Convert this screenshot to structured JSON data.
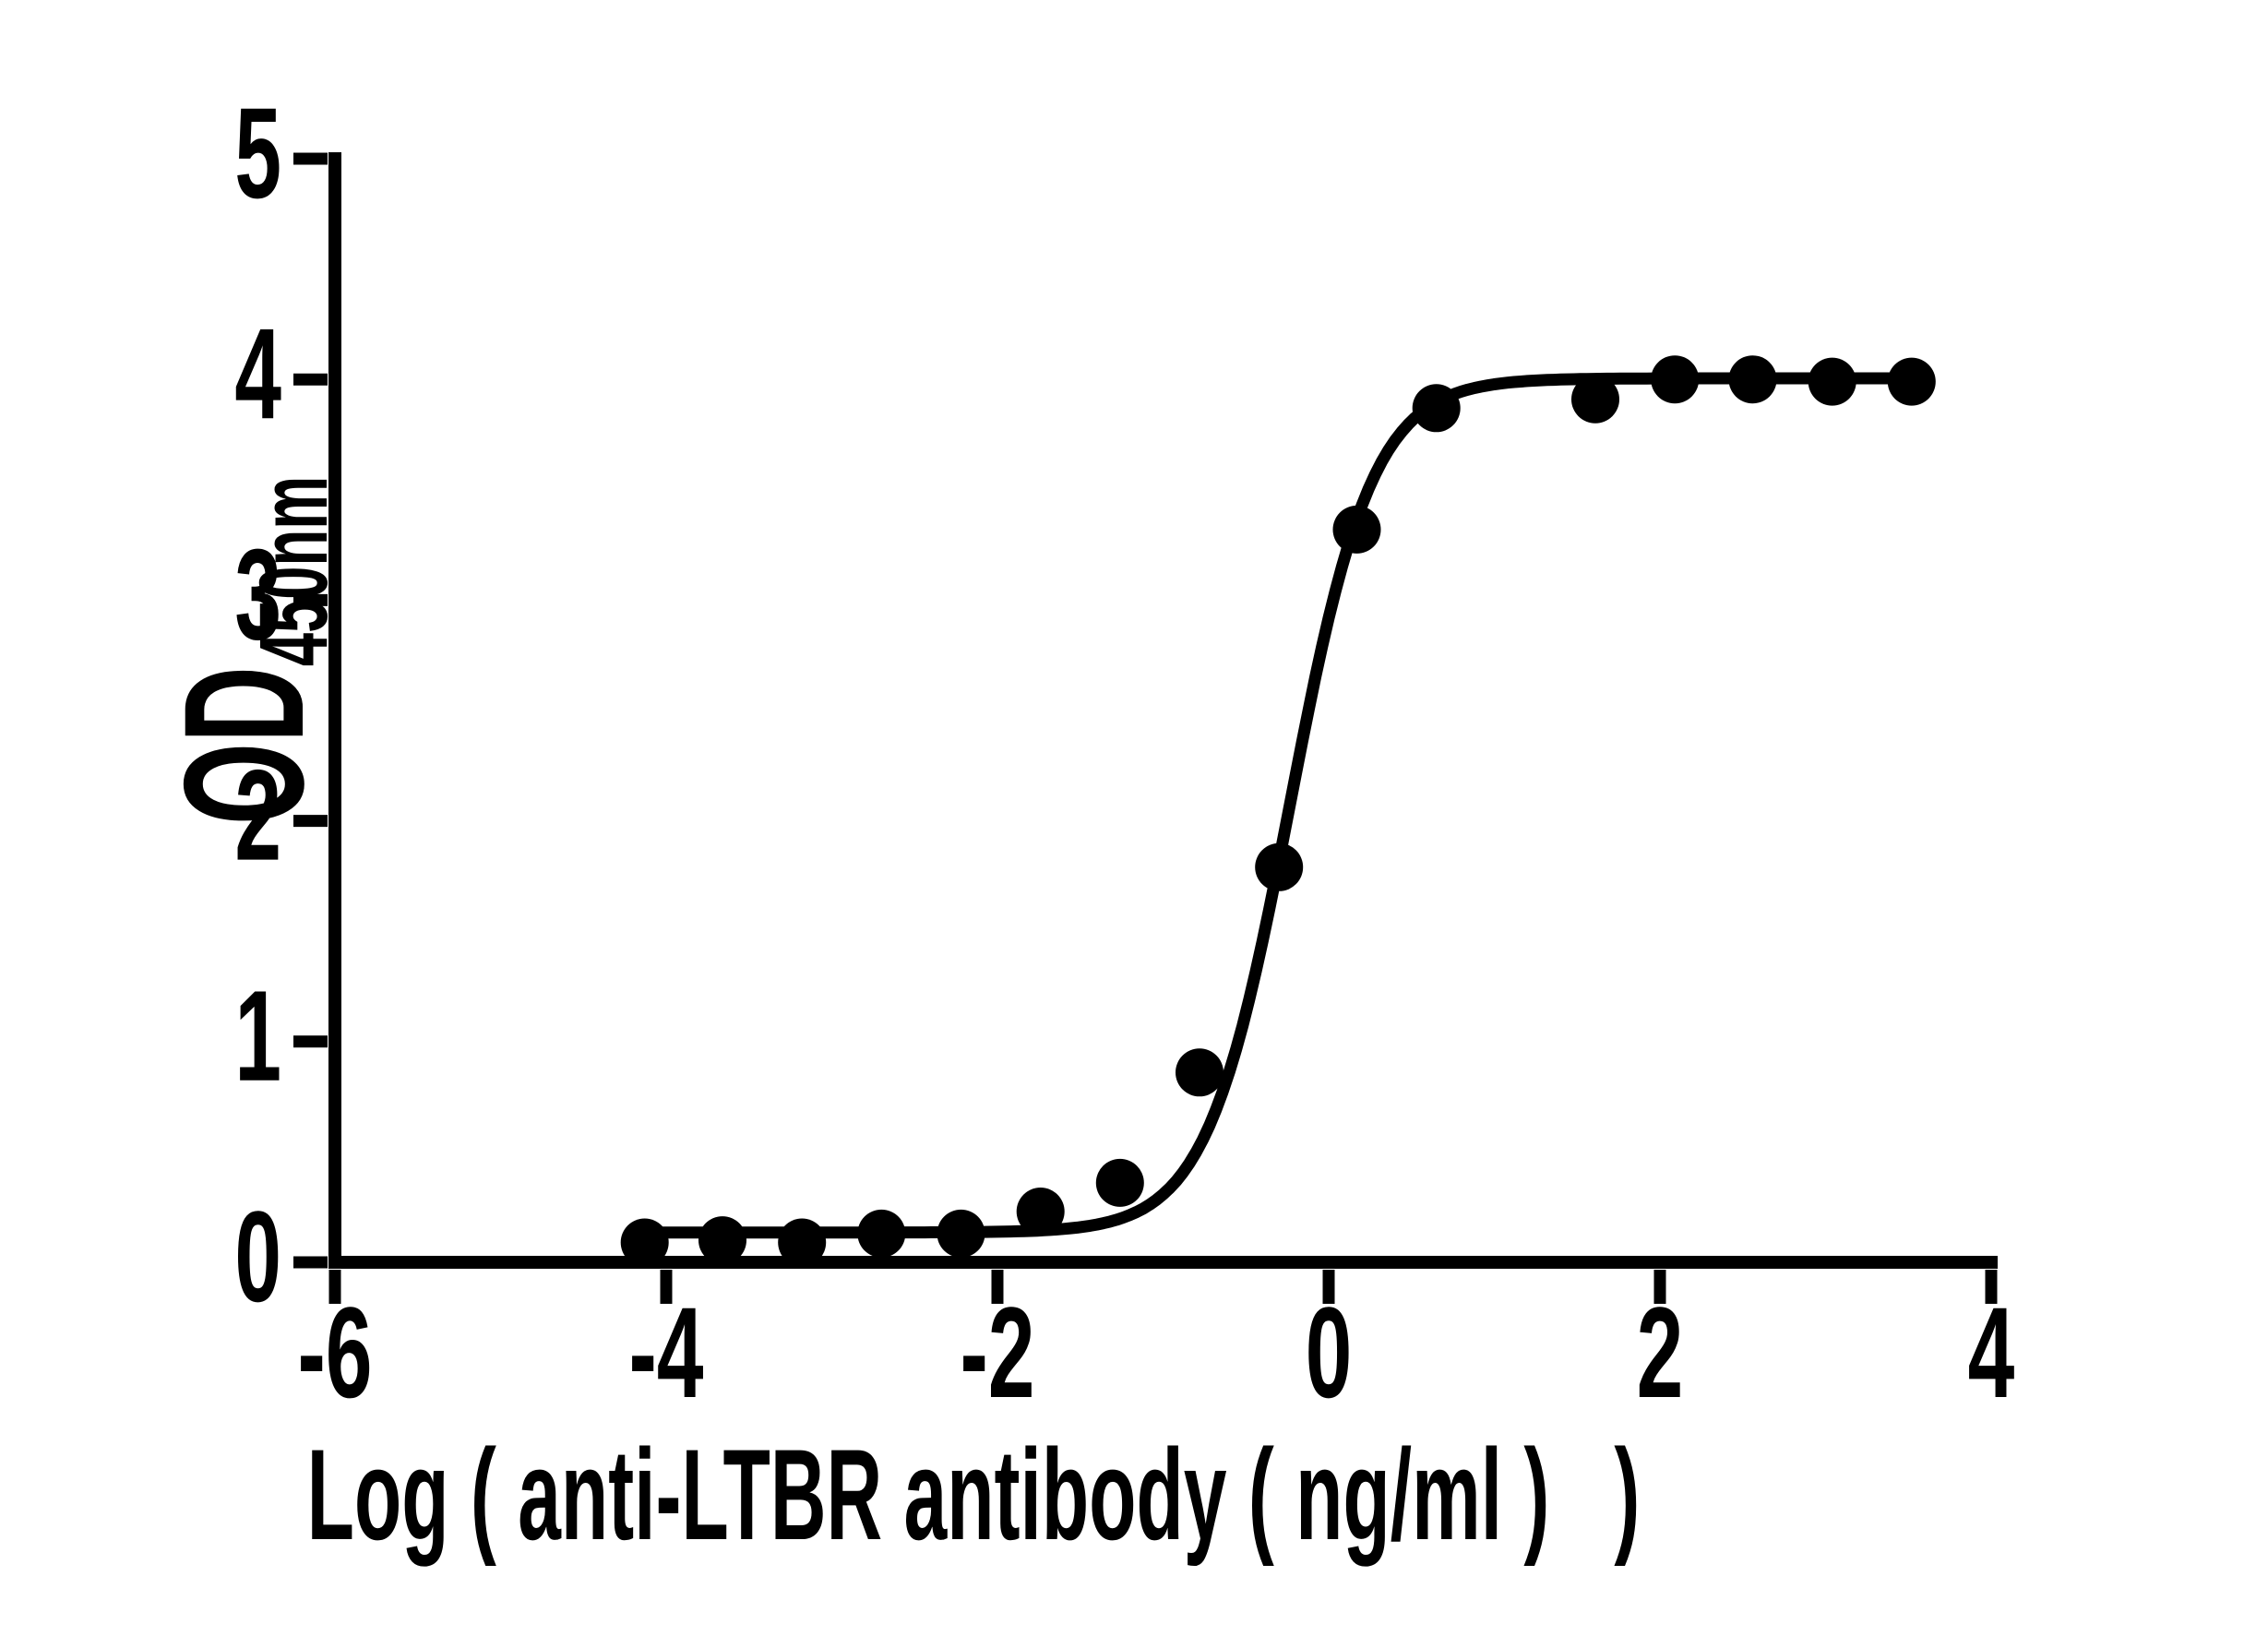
{
  "chart_data": {
    "type": "scatter",
    "title": "",
    "xlabel": "Log ( anti-LTBR antibody ( ng/ml )   )",
    "ylabel_main": "OD",
    "ylabel_sub": "450nm",
    "xlim": [
      -6,
      4
    ],
    "ylim": [
      0,
      5
    ],
    "x_ticks": [
      "-6",
      "-4",
      "-2",
      "0",
      "2",
      "4"
    ],
    "x_tick_values": [
      -6,
      -4,
      -2,
      0,
      2,
      4
    ],
    "y_ticks": [
      "0",
      "1",
      "2",
      "3",
      "4",
      "5"
    ],
    "y_tick_values": [
      0,
      1,
      2,
      3,
      4,
      5
    ],
    "grid": false,
    "legend": "none",
    "marker_color": "#000000",
    "line_color": "#000000",
    "points": [
      {
        "x": -4.13,
        "y": 0.09
      },
      {
        "x": -3.66,
        "y": 0.1
      },
      {
        "x": -3.18,
        "y": 0.09
      },
      {
        "x": -2.7,
        "y": 0.13
      },
      {
        "x": -2.22,
        "y": 0.13
      },
      {
        "x": -1.74,
        "y": 0.23
      },
      {
        "x": -1.26,
        "y": 0.36
      },
      {
        "x": -0.78,
        "y": 0.86
      },
      {
        "x": -0.3,
        "y": 1.79
      },
      {
        "x": 0.17,
        "y": 3.32
      },
      {
        "x": 0.65,
        "y": 3.87
      },
      {
        "x": 1.61,
        "y": 3.91
      },
      {
        "x": 2.09,
        "y": 4.0
      },
      {
        "x": 2.56,
        "y": 4.0
      },
      {
        "x": 3.04,
        "y": 3.99
      },
      {
        "x": 3.52,
        "y": 3.99
      }
    ],
    "fit": {
      "model": "four-parameter-logistic",
      "bottom": 0.135,
      "top": 4.005,
      "log_ec50": -0.235,
      "hill_slope": 1.74,
      "x_start": -4.16,
      "x_end": 3.59
    }
  }
}
